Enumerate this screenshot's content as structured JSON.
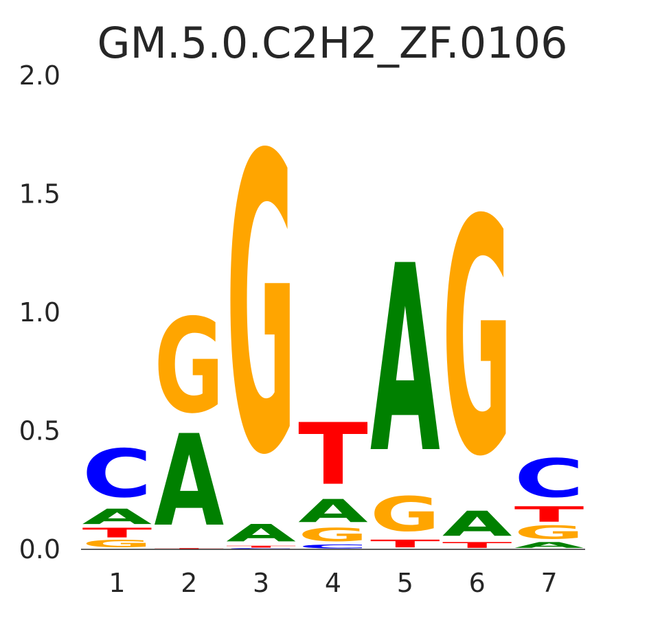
{
  "chart_data": {
    "type": "sequence-logo",
    "title": "GM.5.0.C2H2_ZF.0106",
    "xlabel": "",
    "ylabel": "",
    "ylim": [
      0,
      2
    ],
    "yticks": [
      "0.0",
      "0.5",
      "1.0",
      "1.5",
      "2.0"
    ],
    "positions": [
      "1",
      "2",
      "3",
      "4",
      "5",
      "6",
      "7"
    ],
    "colors": {
      "A": "#008000",
      "C": "#0000ff",
      "G": "#ffa500",
      "T": "#ff0000"
    },
    "stacks": [
      [
        {
          "base": "G",
          "height": 0.04
        },
        {
          "base": "T",
          "height": 0.05
        },
        {
          "base": "A",
          "height": 0.08
        },
        {
          "base": "C",
          "height": 0.25
        }
      ],
      [
        {
          "base": "T",
          "height": 0.005
        },
        {
          "base": "A",
          "height": 0.475
        },
        {
          "base": "G",
          "height": 0.49
        }
      ],
      [
        {
          "base": "C",
          "height": 0.005
        },
        {
          "base": "T",
          "height": 0.01
        },
        {
          "base": "A",
          "height": 0.09
        },
        {
          "base": "G",
          "height": 1.54
        }
      ],
      [
        {
          "base": "C",
          "height": 0.02
        },
        {
          "base": "G",
          "height": 0.07
        },
        {
          "base": "A",
          "height": 0.12
        },
        {
          "base": "T",
          "height": 0.32
        }
      ],
      [
        {
          "base": "T",
          "height": 0.04
        },
        {
          "base": "G",
          "height": 0.18
        },
        {
          "base": "A",
          "height": 0.97
        }
      ],
      [
        {
          "base": "T",
          "height": 0.03
        },
        {
          "base": "A",
          "height": 0.13
        },
        {
          "base": "G",
          "height": 1.22
        }
      ],
      [
        {
          "base": "A",
          "height": 0.03
        },
        {
          "base": "G",
          "height": 0.07
        },
        {
          "base": "T",
          "height": 0.08
        },
        {
          "base": "C",
          "height": 0.2
        }
      ]
    ]
  }
}
